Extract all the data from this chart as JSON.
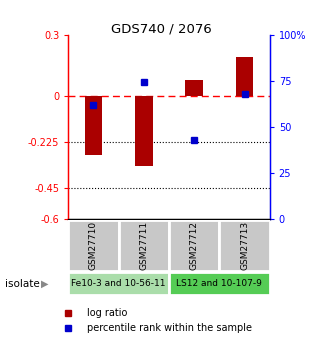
{
  "title": "GDS740 / 2076",
  "samples": [
    "GSM27710",
    "GSM27711",
    "GSM27712",
    "GSM27713"
  ],
  "log_ratios": [
    -0.29,
    -0.34,
    0.08,
    0.19
  ],
  "percentile_ranks": [
    62,
    74,
    43,
    68
  ],
  "bar_color": "#aa0000",
  "dot_color": "#0000cc",
  "left_ticks": [
    0.3,
    0,
    -0.225,
    -0.45,
    -0.6
  ],
  "left_tick_labels": [
    "0.3",
    "0",
    "-0.225",
    "-0.45",
    "-0.6"
  ],
  "right_ticks": [
    100,
    75,
    50,
    25,
    0
  ],
  "right_tick_labels": [
    "100%",
    "75",
    "50",
    "25",
    "0"
  ],
  "dotted_lines": [
    -0.225,
    -0.45
  ],
  "groups": [
    {
      "label": "Fe10-3 and 10-56-11",
      "samples": [
        0,
        1
      ],
      "color": "#aaddaa"
    },
    {
      "label": "LS12 and 10-107-9",
      "samples": [
        2,
        3
      ],
      "color": "#55cc55"
    }
  ],
  "isolate_label": "isolate",
  "legend_items": [
    {
      "label": "log ratio",
      "color": "#aa0000"
    },
    {
      "label": "percentile rank within the sample",
      "color": "#0000cc"
    }
  ],
  "bar_width": 0.35
}
